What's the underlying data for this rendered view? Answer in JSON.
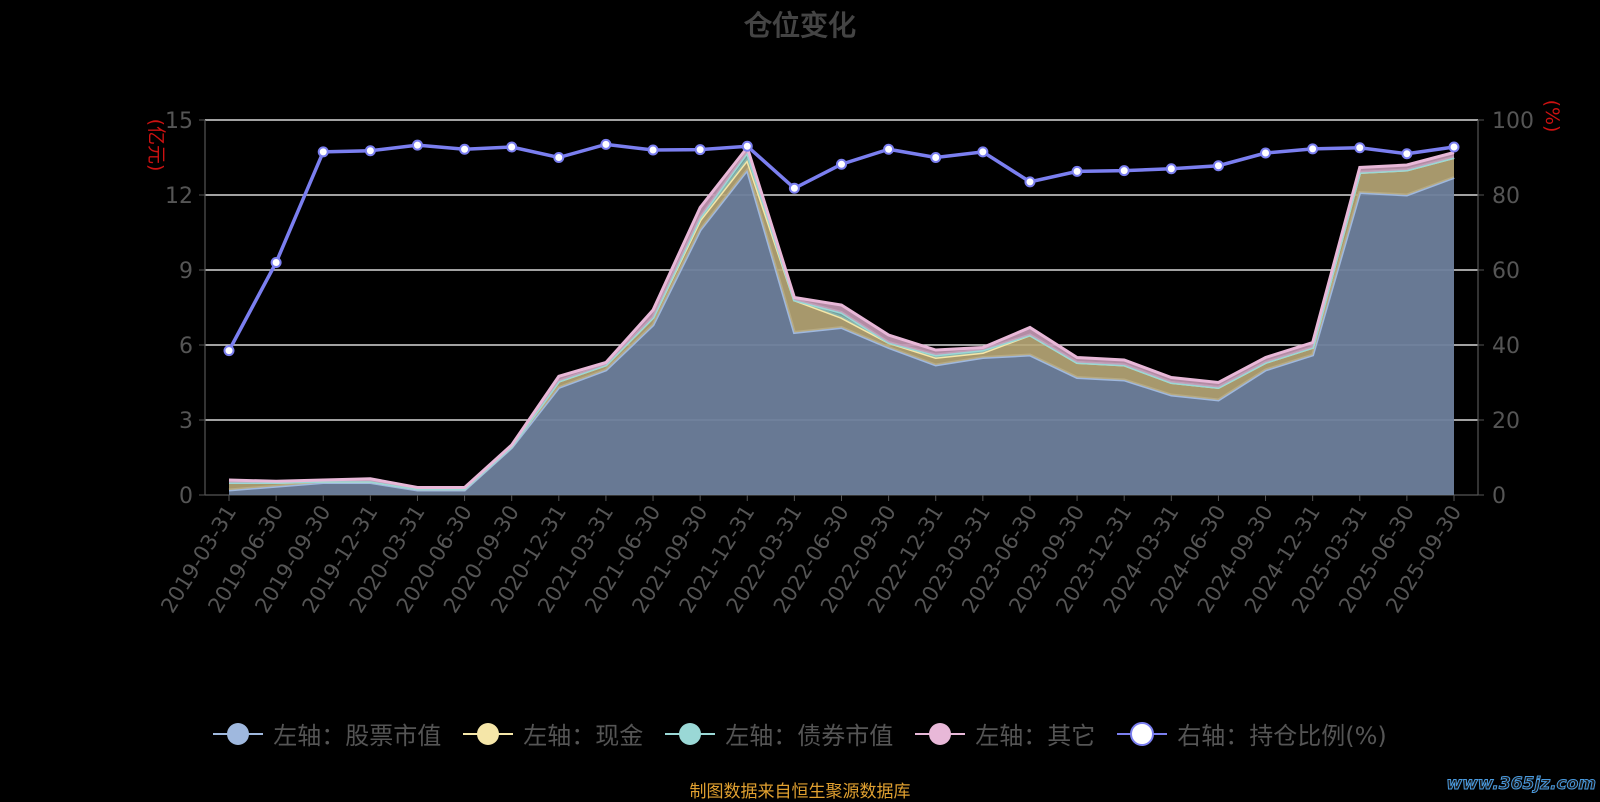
{
  "chart_data": {
    "type": "area",
    "title": "仓位变化",
    "left_axis_label": "(亿元)",
    "right_axis_label": "(%)",
    "left_ylim": [
      0,
      15
    ],
    "left_ticks": [
      "0",
      "3",
      "6",
      "9",
      "12",
      "15"
    ],
    "right_ylim": [
      0,
      100
    ],
    "right_ticks": [
      "0",
      "20",
      "40",
      "60",
      "80",
      "100"
    ],
    "grid": true,
    "legend_position": "bottom",
    "categories": [
      "2019-03-31",
      "2019-06-30",
      "2019-09-30",
      "2019-12-31",
      "2020-03-31",
      "2020-06-30",
      "2020-09-30",
      "2020-12-31",
      "2021-03-31",
      "2021-06-30",
      "2021-09-30",
      "2021-12-31",
      "2022-03-31",
      "2022-06-30",
      "2022-09-30",
      "2022-12-31",
      "2023-03-31",
      "2023-06-30",
      "2023-09-30",
      "2023-12-31",
      "2024-03-31",
      "2024-06-30",
      "2024-09-30",
      "2024-12-31",
      "2025-03-31",
      "2025-06-30",
      "2025-09-30"
    ],
    "stacked_series": [
      {
        "name": "左轴：股票市值",
        "color": "#9fb8de",
        "values": [
          0.2,
          0.35,
          0.5,
          0.5,
          0.2,
          0.2,
          1.9,
          4.3,
          5.0,
          6.8,
          10.6,
          13.0,
          6.5,
          6.7,
          5.9,
          5.2,
          5.5,
          5.6,
          4.7,
          4.6,
          4.0,
          3.8,
          5.0,
          5.6,
          12.1,
          12.0,
          12.7
        ]
      },
      {
        "name": "左轴：现金",
        "color": "#f5e6a8",
        "values": [
          0.3,
          0.15,
          0.05,
          0.05,
          0.05,
          0.05,
          0.05,
          0.25,
          0.2,
          0.3,
          0.4,
          0.4,
          1.3,
          0.4,
          0.2,
          0.3,
          0.2,
          0.8,
          0.6,
          0.6,
          0.5,
          0.5,
          0.3,
          0.3,
          0.8,
          1.0,
          0.8
        ]
      },
      {
        "name": "左轴：债券市值",
        "color": "#9ad8d6",
        "values": [
          0,
          0,
          0,
          0,
          0,
          0,
          0,
          0,
          0,
          0,
          0.1,
          0.3,
          0,
          0.2,
          0,
          0.1,
          0.1,
          0,
          0,
          0,
          0,
          0,
          0,
          0,
          0,
          0,
          0
        ]
      },
      {
        "name": "左轴：其它",
        "color": "#e8b8d8",
        "values": [
          0.1,
          0.05,
          0.05,
          0.1,
          0.05,
          0.05,
          0.05,
          0.2,
          0.1,
          0.3,
          0.4,
          0.2,
          0.1,
          0.3,
          0.3,
          0.2,
          0.1,
          0.3,
          0.2,
          0.2,
          0.2,
          0.2,
          0.2,
          0.2,
          0.2,
          0.2,
          0.2
        ]
      }
    ],
    "line_series": {
      "name": "右轴：持仓比例(%)",
      "color": "#7b7ff0",
      "marker": "#ffffff",
      "values": [
        38.5,
        62,
        91.5,
        91.8,
        93.3,
        92.2,
        92.8,
        90,
        93.5,
        92,
        92.1,
        93,
        81.8,
        88.2,
        92.2,
        90,
        91.5,
        83.5,
        86.3,
        86.5,
        87,
        87.8,
        91.2,
        92.3,
        92.6,
        91,
        92.8
      ]
    }
  },
  "footer": {
    "source": "制图数据来自恒生聚源数据库",
    "watermark": "www.365jz.com"
  }
}
